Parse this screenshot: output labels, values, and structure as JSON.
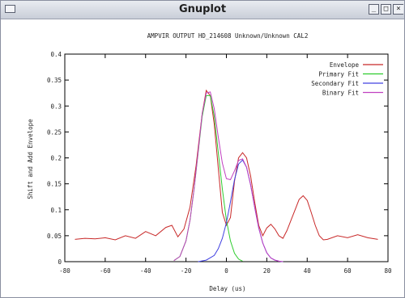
{
  "window": {
    "title": "Gnuplot",
    "minimize_glyph": "_",
    "maximize_glyph": "□",
    "close_glyph": "×"
  },
  "chart_data": {
    "type": "line",
    "title": "AMPVIR OUTPUT HD_214608 Unknown/Unknown CAL2",
    "xlabel": "Delay (us)",
    "ylabel": "Shift and Add Envelope",
    "xlim": [
      -80,
      80
    ],
    "ylim": [
      0,
      0.4
    ],
    "xticks": [
      "-80",
      "-60",
      "-40",
      "-20",
      "0",
      "20",
      "40",
      "60",
      "80"
    ],
    "yticks": [
      "0",
      "0.05",
      "0.1",
      "0.15",
      "0.2",
      "0.25",
      "0.3",
      "0.35",
      "0.4"
    ],
    "grid": false,
    "legend_position": "top-right",
    "series": [
      {
        "name": "Envelope",
        "color": "#c82828",
        "x": [
          -75,
          -70,
          -65,
          -60,
          -55,
          -50,
          -45,
          -40,
          -35,
          -30,
          -27,
          -24,
          -21,
          -18,
          -15,
          -12,
          -10,
          -8,
          -6,
          -4,
          -2,
          0,
          2,
          4,
          6,
          8,
          10,
          12,
          14,
          16,
          18,
          20,
          22,
          24,
          26,
          28,
          30,
          32,
          34,
          36,
          38,
          40,
          42,
          44,
          46,
          48,
          50,
          55,
          60,
          65,
          70,
          75
        ],
        "y": [
          0.043,
          0.045,
          0.044,
          0.046,
          0.042,
          0.05,
          0.045,
          0.058,
          0.05,
          0.066,
          0.07,
          0.048,
          0.063,
          0.105,
          0.185,
          0.285,
          0.33,
          0.32,
          0.265,
          0.18,
          0.095,
          0.07,
          0.085,
          0.155,
          0.2,
          0.21,
          0.2,
          0.165,
          0.115,
          0.07,
          0.05,
          0.065,
          0.072,
          0.063,
          0.05,
          0.045,
          0.06,
          0.08,
          0.1,
          0.12,
          0.127,
          0.118,
          0.095,
          0.07,
          0.05,
          0.042,
          0.043,
          0.05,
          0.046,
          0.052,
          0.046,
          0.043
        ]
      },
      {
        "name": "Primary Fit",
        "color": "#2ecc2e",
        "x": [
          -26,
          -23,
          -20,
          -18,
          -16,
          -14,
          -12,
          -10,
          -8,
          -6,
          -4,
          -2,
          0,
          2,
          4,
          6,
          8
        ],
        "y": [
          0.002,
          0.01,
          0.04,
          0.08,
          0.14,
          0.21,
          0.28,
          0.32,
          0.32,
          0.28,
          0.21,
          0.14,
          0.08,
          0.04,
          0.016,
          0.005,
          0.001
        ]
      },
      {
        "name": "Secondary Fit",
        "color": "#4040e0",
        "x": [
          -14,
          -10,
          -6,
          -4,
          -2,
          0,
          2,
          4,
          6,
          8,
          10,
          12,
          14,
          16,
          18,
          20,
          22,
          24,
          26,
          28
        ],
        "y": [
          0.0,
          0.003,
          0.012,
          0.025,
          0.045,
          0.075,
          0.115,
          0.158,
          0.188,
          0.196,
          0.182,
          0.148,
          0.105,
          0.065,
          0.036,
          0.017,
          0.007,
          0.003,
          0.001,
          0.0
        ]
      },
      {
        "name": "Binary Fit",
        "color": "#c040c0",
        "x": [
          -26,
          -23,
          -20,
          -18,
          -16,
          -14,
          -12,
          -10,
          -8,
          -6,
          -4,
          -2,
          0,
          2,
          4,
          6,
          8,
          10,
          12,
          14,
          16,
          18,
          20,
          22,
          24,
          26,
          28
        ],
        "y": [
          0.002,
          0.01,
          0.04,
          0.08,
          0.14,
          0.212,
          0.285,
          0.325,
          0.327,
          0.295,
          0.24,
          0.19,
          0.16,
          0.158,
          0.175,
          0.195,
          0.198,
          0.182,
          0.148,
          0.105,
          0.065,
          0.036,
          0.017,
          0.007,
          0.003,
          0.001,
          0.0
        ]
      }
    ]
  }
}
